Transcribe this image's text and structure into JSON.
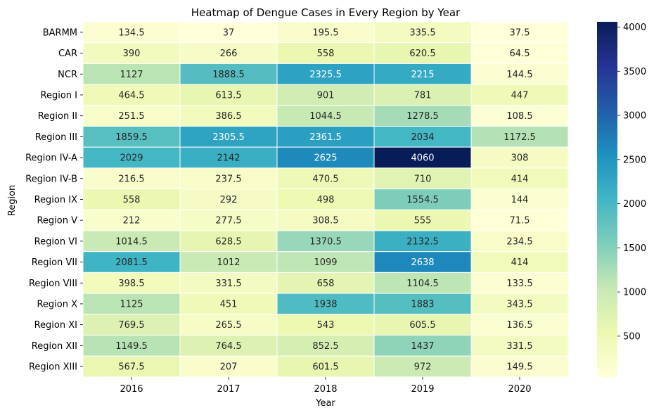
{
  "chart_data": {
    "type": "heatmap",
    "title": "Heatmap of Dengue Cases in Every Region by Year",
    "xlabel": "Year",
    "ylabel": "Region",
    "x_categories": [
      "2016",
      "2017",
      "2018",
      "2019",
      "2020"
    ],
    "y_categories": [
      "BARMM",
      "CAR",
      "NCR",
      "Region I",
      "Region II",
      "Region III",
      "Region IV-A",
      "Region IV-B",
      "Region IX",
      "Region V",
      "Region VI",
      "Region VII",
      "Region VIII",
      "Region X",
      "Region XI",
      "Region XII",
      "Region XIII"
    ],
    "values": [
      [
        134.5,
        37,
        195.5,
        335.5,
        37.5
      ],
      [
        390,
        266,
        558,
        620.5,
        64.5
      ],
      [
        1127,
        1888.5,
        2325.5,
        2215,
        144.5
      ],
      [
        464.5,
        613.5,
        901,
        781,
        447
      ],
      [
        251.5,
        386.5,
        1044.5,
        1278.5,
        108.5
      ],
      [
        1859.5,
        2305.5,
        2361.5,
        2034,
        1172.5
      ],
      [
        2029,
        2142,
        2625,
        4060,
        308
      ],
      [
        216.5,
        237.5,
        470.5,
        710,
        414
      ],
      [
        558,
        292,
        498,
        1554.5,
        144
      ],
      [
        212,
        277.5,
        308.5,
        555,
        71.5
      ],
      [
        1014.5,
        628.5,
        1370.5,
        2132.5,
        234.5
      ],
      [
        2081.5,
        1012,
        1099,
        2638,
        414
      ],
      [
        398.5,
        331.5,
        658,
        1104.5,
        133.5
      ],
      [
        1125,
        451,
        1938,
        1883,
        343.5
      ],
      [
        769.5,
        265.5,
        543,
        605.5,
        136.5
      ],
      [
        1149.5,
        764.5,
        852.5,
        1437,
        331.5
      ],
      [
        567.5,
        207,
        601.5,
        972,
        149.5
      ]
    ],
    "value_labels": [
      [
        "134.5",
        "37",
        "195.5",
        "335.5",
        "37.5"
      ],
      [
        "390",
        "266",
        "558",
        "620.5",
        "64.5"
      ],
      [
        "1127",
        "1888.5",
        "2325.5",
        "2215",
        "144.5"
      ],
      [
        "464.5",
        "613.5",
        "901",
        "781",
        "447"
      ],
      [
        "251.5",
        "386.5",
        "1044.5",
        "1278.5",
        "108.5"
      ],
      [
        "1859.5",
        "2305.5",
        "2361.5",
        "2034",
        "1172.5"
      ],
      [
        "2029",
        "2142",
        "2625",
        "4060",
        "308"
      ],
      [
        "216.5",
        "237.5",
        "470.5",
        "710",
        "414"
      ],
      [
        "558",
        "292",
        "498",
        "1554.5",
        "144"
      ],
      [
        "212",
        "277.5",
        "308.5",
        "555",
        "71.5"
      ],
      [
        "1014.5",
        "628.5",
        "1370.5",
        "2132.5",
        "234.5"
      ],
      [
        "2081.5",
        "1012",
        "1099",
        "2638",
        "414"
      ],
      [
        "398.5",
        "331.5",
        "658",
        "1104.5",
        "133.5"
      ],
      [
        "1125",
        "451",
        "1938",
        "1883",
        "343.5"
      ],
      [
        "769.5",
        "265.5",
        "543",
        "605.5",
        "136.5"
      ],
      [
        "1149.5",
        "764.5",
        "852.5",
        "1437",
        "331.5"
      ],
      [
        "567.5",
        "207",
        "601.5",
        "972",
        "149.5"
      ]
    ],
    "colormap": "YlGnBu",
    "vmin": 37,
    "vmax": 4060,
    "colorbar": {
      "ticks": [
        500,
        1000,
        1500,
        2000,
        2500,
        3000,
        3500,
        4000
      ],
      "tick_labels": [
        "500",
        "1000",
        "1500",
        "2000",
        "2500",
        "3000",
        "3500",
        "4000"
      ]
    },
    "grid": false,
    "annotated": true
  }
}
